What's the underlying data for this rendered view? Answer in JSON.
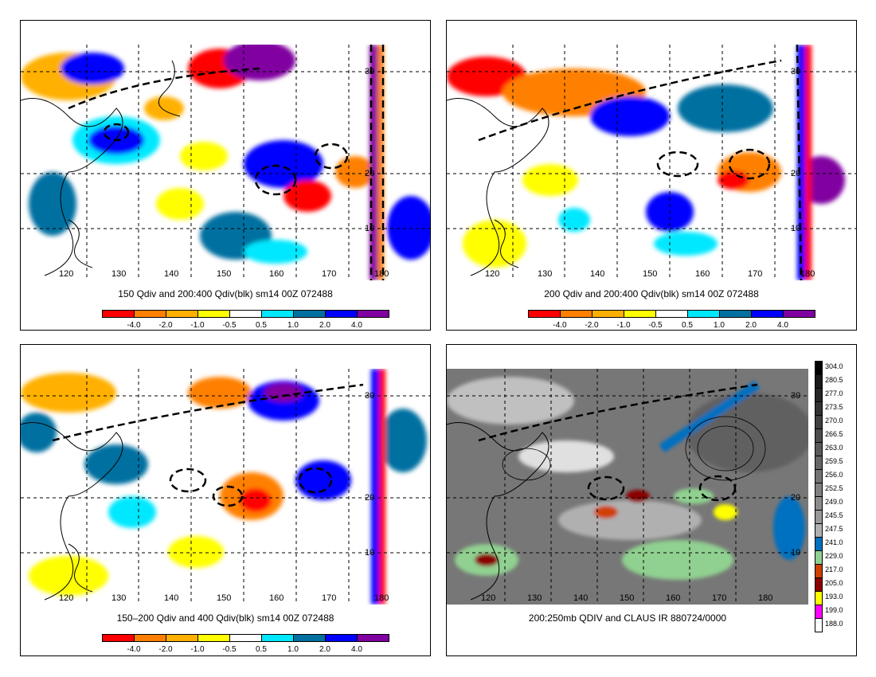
{
  "panels": [
    {
      "id": "p1",
      "caption": "150 Qdiv and 200:400 Qdiv(blk) sm14 00Z 072488",
      "type": "qdiv"
    },
    {
      "id": "p2",
      "caption": "200 Qdiv and 200:400 Qdiv(blk) sm14 00Z 072488",
      "type": "qdiv"
    },
    {
      "id": "p3",
      "caption": "150–200 Qdiv and 400 Qdiv(blk) sm14 00Z 072488",
      "type": "qdiv"
    },
    {
      "id": "p4",
      "caption": "200:250mb QDIV and CLAUS IR 880724/0000",
      "type": "ir"
    }
  ],
  "lon_labels": [
    "120",
    "130",
    "140",
    "150",
    "160",
    "170",
    "180"
  ],
  "lat_labels": [
    "30",
    "20",
    "10"
  ],
  "qdiv_scale": {
    "ticks": [
      "-4.0",
      "-2.0",
      "-1.0",
      "-0.5",
      "0.5",
      "1.0",
      "2.0",
      "4.0"
    ],
    "colors": [
      "#ff0000",
      "#ff8000",
      "#ffb000",
      "#ffff00",
      "#ffffff",
      "#00e8ff",
      "#0070a0",
      "#0000ff",
      "#8000a0"
    ]
  },
  "ir_scale": {
    "labels": [
      "304.0",
      "280.5",
      "277.0",
      "273.5",
      "270.0",
      "266.5",
      "263.0",
      "259.5",
      "256.0",
      "252.5",
      "249.0",
      "245.5",
      "247.5",
      "241.0",
      "229.0",
      "217.0",
      "205.0",
      "193.0",
      "199.0",
      "188.0"
    ],
    "colors": [
      "#000000",
      "#1a1a1a",
      "#262626",
      "#333333",
      "#404040",
      "#4d4d4d",
      "#595959",
      "#666666",
      "#737373",
      "#808080",
      "#8c8c8c",
      "#999999",
      "#b0b0b0",
      "#0070c0",
      "#90d090",
      "#d04000",
      "#8b0000",
      "#ffff00",
      "#ff00ff",
      "#ffffff"
    ]
  }
}
